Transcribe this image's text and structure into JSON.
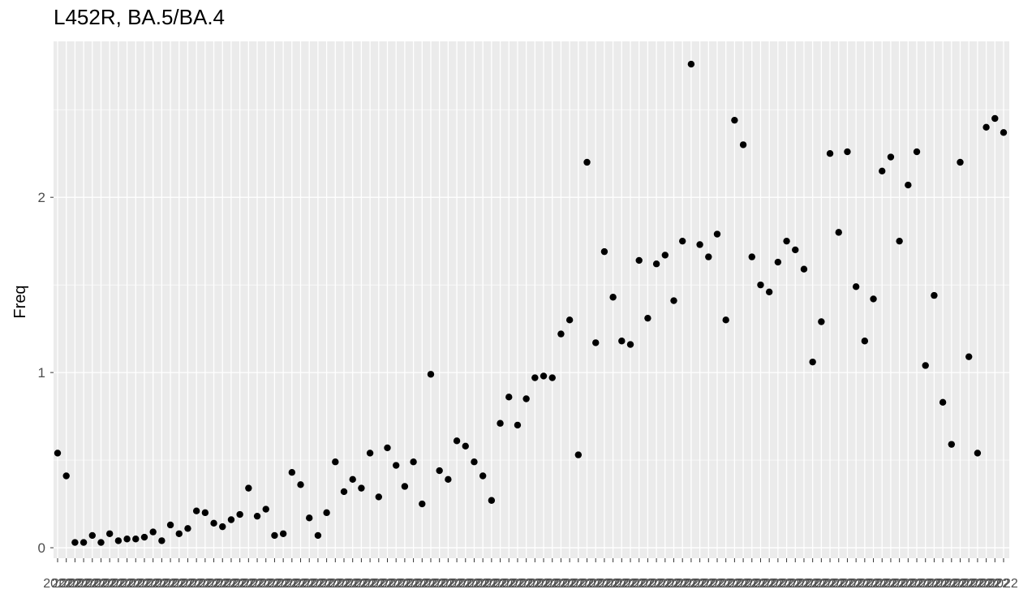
{
  "chart_data": {
    "type": "scatter",
    "title": "L452R, BA.5/BA.4",
    "xlabel": "",
    "ylabel": "Freq",
    "ylim": [
      -0.06,
      2.89
    ],
    "y_ticks": [
      0,
      1,
      2
    ],
    "grid": true,
    "legend": "none",
    "x_tick_labels_overlapping": "2022",
    "y": [
      0.54,
      0.41,
      0.03,
      0.03,
      0.07,
      0.03,
      0.08,
      0.04,
      0.05,
      0.05,
      0.06,
      0.09,
      0.04,
      0.13,
      0.08,
      0.11,
      0.21,
      0.2,
      0.14,
      0.12,
      0.16,
      0.19,
      0.34,
      0.18,
      0.22,
      0.07,
      0.08,
      0.43,
      0.36,
      0.17,
      0.07,
      0.2,
      0.49,
      0.32,
      0.39,
      0.34,
      0.54,
      0.29,
      0.57,
      0.47,
      0.35,
      0.49,
      0.25,
      0.99,
      0.44,
      0.39,
      0.61,
      0.58,
      0.49,
      0.41,
      0.27,
      0.71,
      0.86,
      0.7,
      0.85,
      0.97,
      0.98,
      0.97,
      1.22,
      1.3,
      0.53,
      2.2,
      1.17,
      1.69,
      1.43,
      1.18,
      1.16,
      1.64,
      1.31,
      1.62,
      1.67,
      1.41,
      1.75,
      2.76,
      1.73,
      1.66,
      1.79,
      1.3,
      2.44,
      2.3,
      1.66,
      1.5,
      1.46,
      1.63,
      1.75,
      1.7,
      1.59,
      1.06,
      1.29,
      2.25,
      1.8,
      2.26,
      1.49,
      1.18,
      1.42,
      2.15,
      2.23,
      1.75,
      2.07,
      2.26,
      1.04,
      1.44,
      0.83,
      0.59,
      2.2,
      1.09,
      0.54,
      2.4,
      2.45,
      2.37
    ]
  }
}
